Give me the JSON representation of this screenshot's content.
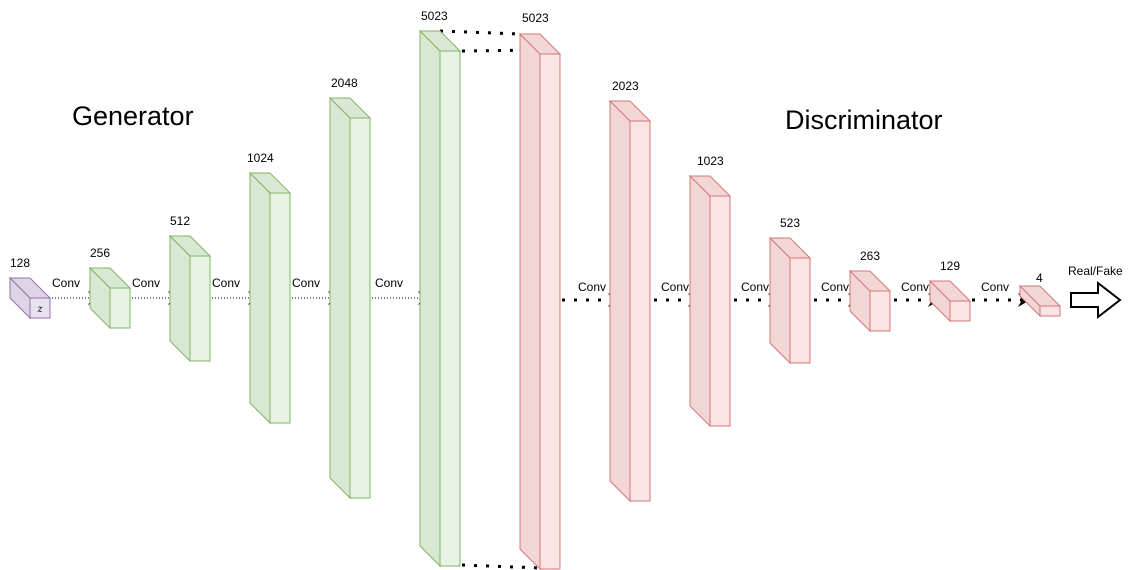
{
  "titles": {
    "generator": "Generator",
    "discriminator": "Discriminator"
  },
  "input_symbol": "z",
  "output_label": "Real/Fake",
  "connection_label": "Conv",
  "generator_blocks": [
    "128",
    "256",
    "512",
    "1024",
    "2048",
    "5023"
  ],
  "discriminator_blocks": [
    "5023",
    "2023",
    "1023",
    "523",
    "263",
    "129",
    "4"
  ],
  "colors": {
    "input_front": "#e8e2f0",
    "input_side": "#ddd4e8",
    "input_stroke": "#9673a6",
    "generator_front": "#e8f3e4",
    "generator_side": "#d9e8d3",
    "generator_stroke": "#82b366",
    "discriminator_front": "#fbe4e4",
    "discriminator_side": "#f2d5d5",
    "discriminator_stroke": "#d47878",
    "arrow": "#000000"
  }
}
